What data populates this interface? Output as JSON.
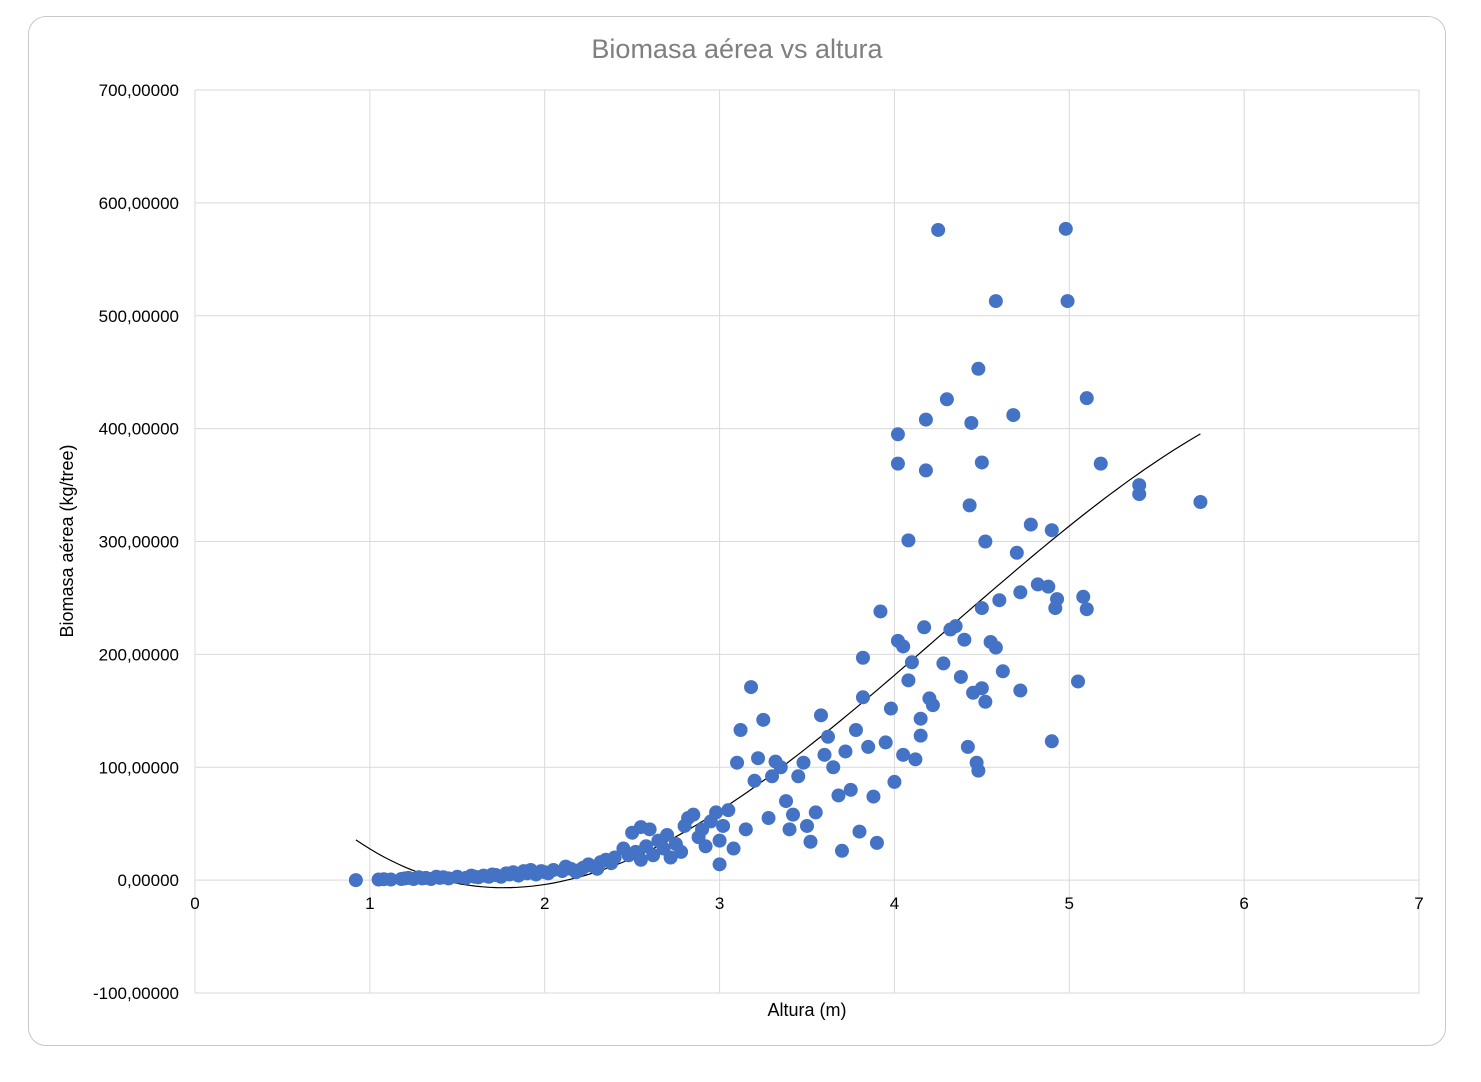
{
  "chart_data": {
    "type": "scatter",
    "title": "Biomasa aérea vs altura",
    "xlabel": "Altura (m)",
    "ylabel": "Biomasa aérea (kg/tree)",
    "xlim": [
      0,
      7
    ],
    "ylim": [
      -100,
      700
    ],
    "x_ticks": [
      0,
      1,
      2,
      3,
      4,
      5,
      6,
      7
    ],
    "x_tick_labels": [
      "0",
      "1",
      "2",
      "3",
      "4",
      "5",
      "6",
      "7"
    ],
    "y_ticks": [
      -100,
      0,
      100,
      200,
      300,
      400,
      500,
      600,
      700
    ],
    "y_tick_labels": [
      "-100,00000",
      "0,00000",
      "100,00000",
      "200,00000",
      "300,00000",
      "400,00000",
      "500,00000",
      "600,00000",
      "700,00000"
    ],
    "grid": true,
    "legend": "none",
    "colors": {
      "points": "#4472c4",
      "trendline": "#000000",
      "grid": "#d9d9d9",
      "title": "#7f7f7f"
    },
    "trendline": {
      "type": "polynomial",
      "x_range": [
        0.92,
        5.75
      ]
    },
    "series": [
      {
        "points": [
          [
            0.92,
            0
          ],
          [
            1.05,
            0.5
          ],
          [
            1.08,
            0.8
          ],
          [
            1.12,
            0.5
          ],
          [
            1.18,
            1
          ],
          [
            1.2,
            1.5
          ],
          [
            1.22,
            2
          ],
          [
            1.25,
            1
          ],
          [
            1.28,
            2.5
          ],
          [
            1.3,
            1.5
          ],
          [
            1.32,
            2
          ],
          [
            1.35,
            1
          ],
          [
            1.38,
            3
          ],
          [
            1.4,
            2
          ],
          [
            1.42,
            2.5
          ],
          [
            1.45,
            1.5
          ],
          [
            1.5,
            3
          ],
          [
            1.55,
            2
          ],
          [
            1.58,
            4
          ],
          [
            1.6,
            3
          ],
          [
            1.62,
            2.5
          ],
          [
            1.65,
            4
          ],
          [
            1.68,
            3
          ],
          [
            1.7,
            5
          ],
          [
            1.72,
            4.5
          ],
          [
            1.75,
            3
          ],
          [
            1.78,
            6
          ],
          [
            1.8,
            5
          ],
          [
            1.82,
            7
          ],
          [
            1.85,
            4
          ],
          [
            1.88,
            8
          ],
          [
            1.9,
            6
          ],
          [
            1.92,
            9
          ],
          [
            1.95,
            5
          ],
          [
            1.98,
            8
          ],
          [
            2.0,
            7
          ],
          [
            2.02,
            6
          ],
          [
            2.05,
            9
          ],
          [
            2.1,
            8
          ],
          [
            2.12,
            12
          ],
          [
            2.15,
            10
          ],
          [
            2.18,
            7
          ],
          [
            2.2,
            9
          ],
          [
            2.22,
            11
          ],
          [
            2.25,
            14
          ],
          [
            2.28,
            12
          ],
          [
            2.3,
            10
          ],
          [
            2.32,
            16
          ],
          [
            2.35,
            18
          ],
          [
            2.38,
            15
          ],
          [
            2.4,
            20
          ],
          [
            2.45,
            28
          ],
          [
            2.48,
            22
          ],
          [
            2.5,
            42
          ],
          [
            2.52,
            25
          ],
          [
            2.55,
            18
          ],
          [
            2.55,
            47
          ],
          [
            2.58,
            30
          ],
          [
            2.6,
            45
          ],
          [
            2.62,
            22
          ],
          [
            2.65,
            35
          ],
          [
            2.68,
            28
          ],
          [
            2.7,
            40
          ],
          [
            2.72,
            20
          ],
          [
            2.75,
            32
          ],
          [
            2.78,
            25
          ],
          [
            2.8,
            48
          ],
          [
            2.82,
            55
          ],
          [
            2.85,
            58
          ],
          [
            2.88,
            38
          ],
          [
            2.9,
            45
          ],
          [
            2.92,
            30
          ],
          [
            2.95,
            52
          ],
          [
            2.98,
            60
          ],
          [
            3.0,
            14
          ],
          [
            3.0,
            35
          ],
          [
            3.02,
            48
          ],
          [
            3.05,
            62
          ],
          [
            3.08,
            28
          ],
          [
            3.1,
            104
          ],
          [
            3.12,
            133
          ],
          [
            3.15,
            45
          ],
          [
            3.18,
            171
          ],
          [
            3.2,
            88
          ],
          [
            3.22,
            108
          ],
          [
            3.25,
            142
          ],
          [
            3.28,
            55
          ],
          [
            3.3,
            92
          ],
          [
            3.32,
            105
          ],
          [
            3.35,
            100
          ],
          [
            3.38,
            70
          ],
          [
            3.4,
            45
          ],
          [
            3.42,
            58
          ],
          [
            3.45,
            92
          ],
          [
            3.48,
            104
          ],
          [
            3.5,
            48
          ],
          [
            3.52,
            34
          ],
          [
            3.55,
            60
          ],
          [
            3.58,
            146
          ],
          [
            3.6,
            111
          ],
          [
            3.62,
            127
          ],
          [
            3.65,
            100
          ],
          [
            3.68,
            75
          ],
          [
            3.7,
            26
          ],
          [
            3.72,
            114
          ],
          [
            3.75,
            80
          ],
          [
            3.78,
            133
          ],
          [
            3.8,
            43
          ],
          [
            3.82,
            197
          ],
          [
            3.82,
            162
          ],
          [
            3.85,
            118
          ],
          [
            3.88,
            74
          ],
          [
            3.9,
            33
          ],
          [
            3.92,
            238
          ],
          [
            3.95,
            122
          ],
          [
            3.98,
            152
          ],
          [
            4.0,
            87
          ],
          [
            4.02,
            212
          ],
          [
            4.02,
            395
          ],
          [
            4.02,
            369
          ],
          [
            4.05,
            207
          ],
          [
            4.05,
            111
          ],
          [
            4.08,
            301
          ],
          [
            4.08,
            177
          ],
          [
            4.1,
            193
          ],
          [
            4.12,
            107
          ],
          [
            4.15,
            143
          ],
          [
            4.15,
            128
          ],
          [
            4.17,
            224
          ],
          [
            4.18,
            363
          ],
          [
            4.18,
            408
          ],
          [
            4.2,
            161
          ],
          [
            4.22,
            155
          ],
          [
            4.25,
            576
          ],
          [
            4.28,
            192
          ],
          [
            4.3,
            426
          ],
          [
            4.32,
            222
          ],
          [
            4.35,
            225
          ],
          [
            4.38,
            180
          ],
          [
            4.4,
            213
          ],
          [
            4.42,
            118
          ],
          [
            4.43,
            332
          ],
          [
            4.44,
            405
          ],
          [
            4.45,
            166
          ],
          [
            4.47,
            104
          ],
          [
            4.48,
            97
          ],
          [
            4.48,
            453
          ],
          [
            4.5,
            370
          ],
          [
            4.5,
            241
          ],
          [
            4.5,
            170
          ],
          [
            4.52,
            300
          ],
          [
            4.52,
            158
          ],
          [
            4.55,
            211
          ],
          [
            4.58,
            206
          ],
          [
            4.58,
            513
          ],
          [
            4.6,
            248
          ],
          [
            4.62,
            185
          ],
          [
            4.68,
            412
          ],
          [
            4.7,
            290
          ],
          [
            4.72,
            255
          ],
          [
            4.72,
            168
          ],
          [
            4.78,
            315
          ],
          [
            4.82,
            262
          ],
          [
            4.88,
            260
          ],
          [
            4.9,
            310
          ],
          [
            4.9,
            123
          ],
          [
            4.92,
            241
          ],
          [
            4.93,
            249
          ],
          [
            4.98,
            577
          ],
          [
            4.99,
            513
          ],
          [
            5.05,
            176
          ],
          [
            5.08,
            251
          ],
          [
            5.1,
            427
          ],
          [
            5.1,
            240
          ],
          [
            5.18,
            369
          ],
          [
            5.4,
            350
          ],
          [
            5.4,
            342
          ],
          [
            5.75,
            335
          ]
        ]
      }
    ]
  }
}
